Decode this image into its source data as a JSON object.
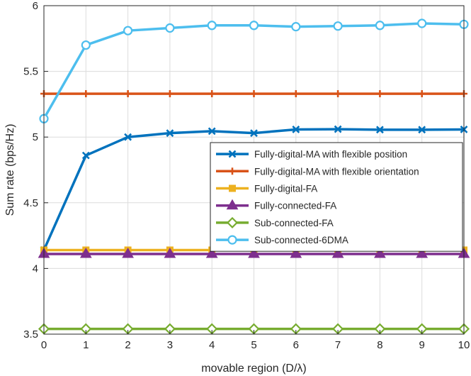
{
  "chart_data": {
    "type": "line",
    "xlabel": "movable region (D/λ)",
    "ylabel": "Sum rate (bps/Hz)",
    "xlim": [
      0,
      10
    ],
    "ylim": [
      3.5,
      6
    ],
    "xticks": [
      0,
      1,
      2,
      3,
      4,
      5,
      6,
      7,
      8,
      9,
      10
    ],
    "yticks": [
      3.5,
      4,
      4.5,
      5,
      5.5,
      6
    ],
    "ytick_labels": [
      "3.5",
      "4",
      "4.5",
      "5",
      "5.5",
      "6"
    ],
    "grid": true,
    "legend_position": "center-right",
    "x": [
      0,
      1,
      2,
      3,
      4,
      5,
      6,
      7,
      8,
      9,
      10
    ],
    "series": [
      {
        "name": "Fully-digital-MA with flexible position",
        "color": "#0072BD",
        "marker": "x",
        "values": [
          4.14,
          4.86,
          5.0,
          5.03,
          5.045,
          5.03,
          5.058,
          5.06,
          5.056,
          5.056,
          5.058
        ]
      },
      {
        "name": "Fully-digital-MA with flexible orientation",
        "color": "#D95319",
        "marker": "plus",
        "values": [
          5.33,
          5.33,
          5.33,
          5.33,
          5.33,
          5.33,
          5.33,
          5.33,
          5.33,
          5.33,
          5.33
        ]
      },
      {
        "name": "Fully-digital-FA",
        "color": "#EDB120",
        "marker": "square",
        "values": [
          4.14,
          4.14,
          4.14,
          4.14,
          4.14,
          4.14,
          4.14,
          4.14,
          4.14,
          4.14,
          4.14
        ]
      },
      {
        "name": "Fully-connected-FA",
        "color": "#7E2F8E",
        "marker": "triangle",
        "values": [
          4.11,
          4.11,
          4.11,
          4.11,
          4.11,
          4.11,
          4.11,
          4.11,
          4.11,
          4.11,
          4.11
        ]
      },
      {
        "name": "Sub-connected-FA",
        "color": "#77AC30",
        "marker": "diamond",
        "values": [
          3.54,
          3.54,
          3.54,
          3.54,
          3.54,
          3.54,
          3.54,
          3.54,
          3.54,
          3.54,
          3.54
        ]
      },
      {
        "name": "Sub-connected-6DMA",
        "color": "#4DBEEE",
        "marker": "circle",
        "values": [
          5.14,
          5.7,
          5.81,
          5.83,
          5.85,
          5.85,
          5.84,
          5.845,
          5.85,
          5.865,
          5.858
        ]
      }
    ]
  }
}
